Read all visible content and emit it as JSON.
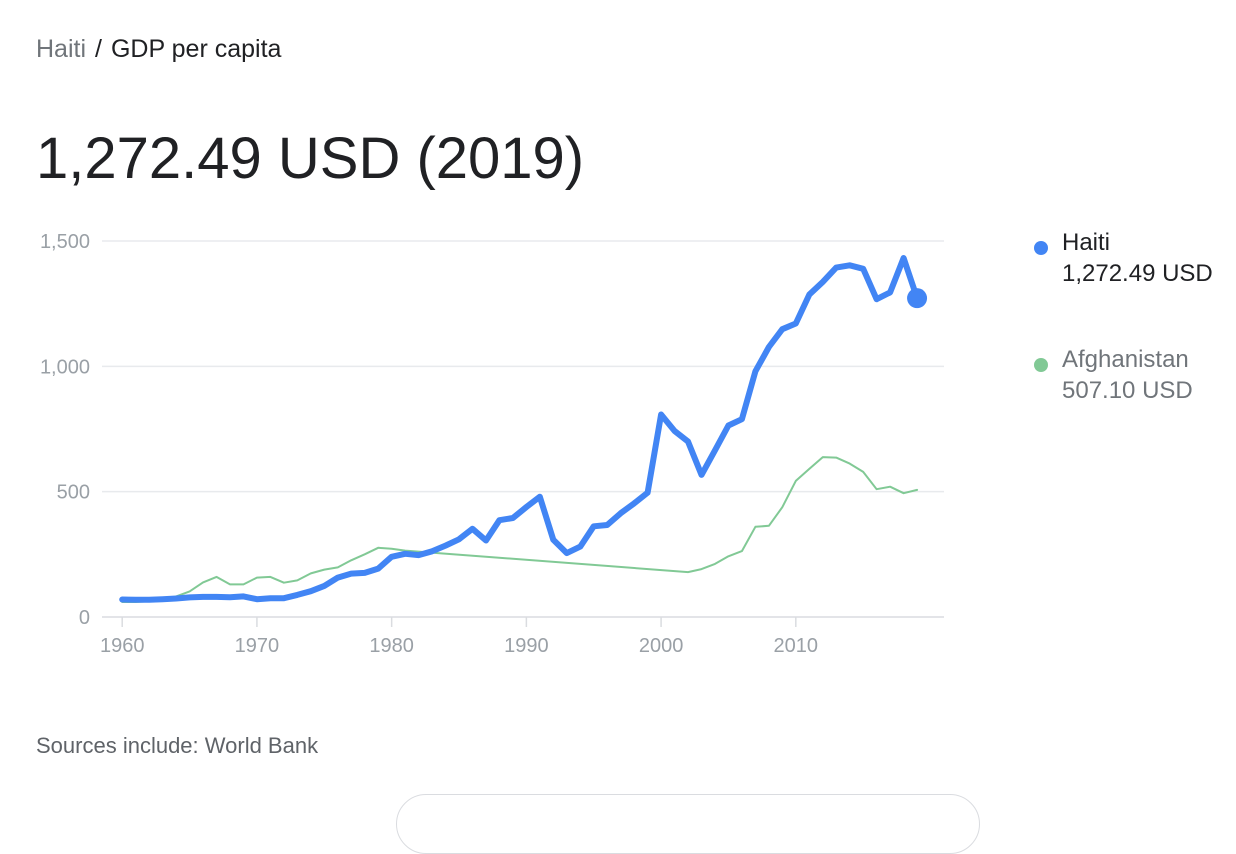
{
  "breadcrumb": {
    "parent": "Haiti",
    "separator": "/",
    "current": "GDP per capita"
  },
  "headline": "1,272.49 USD (2019)",
  "colors": {
    "haiti": "#4285f4",
    "afghanistan": "#81c995",
    "grid": "#e8eaed",
    "axis_text": "#9aa0a6"
  },
  "legend": [
    {
      "name": "Haiti",
      "value": "1,272.49 USD",
      "color": "#4285f4"
    },
    {
      "name": "Afghanistan",
      "value": "507.10 USD",
      "color": "#81c995"
    }
  ],
  "sources": "Sources include: World Bank",
  "chart_data": {
    "type": "line",
    "xlim": [
      1958.5,
      2021
    ],
    "ylim": [
      0,
      1500
    ],
    "x_ticks": [
      1960,
      1970,
      1980,
      1990,
      2000,
      2010
    ],
    "x_tick_labels": [
      "1960",
      "1970",
      "1980",
      "1990",
      "2000",
      "2010"
    ],
    "y_ticks": [
      0,
      500,
      1000,
      1500
    ],
    "y_tick_labels": [
      "0",
      "500",
      "1,000",
      "1,500"
    ],
    "grid": true,
    "legend_position": "right",
    "series": [
      {
        "name": "Haiti",
        "color": "#4285f4",
        "x": [
          1960,
          1961,
          1962,
          1963,
          1964,
          1965,
          1966,
          1967,
          1968,
          1969,
          1970,
          1971,
          1972,
          1973,
          1974,
          1975,
          1976,
          1977,
          1978,
          1979,
          1980,
          1981,
          1982,
          1983,
          1984,
          1985,
          1986,
          1987,
          1988,
          1989,
          1990,
          1991,
          1992,
          1993,
          1994,
          1995,
          1996,
          1997,
          1998,
          1999,
          2000,
          2001,
          2002,
          2003,
          2004,
          2005,
          2006,
          2007,
          2008,
          2009,
          2010,
          2011,
          2012,
          2013,
          2014,
          2015,
          2016,
          2017,
          2018,
          2019
        ],
        "y": [
          70,
          69,
          69,
          71,
          74,
          78,
          80,
          80,
          79,
          82,
          71,
          75,
          75,
          88,
          103,
          124,
          157,
          173,
          176,
          193,
          240,
          252,
          247,
          262,
          285,
          310,
          352,
          305,
          386,
          395,
          439,
          480,
          308,
          255,
          281,
          362,
          367,
          414,
          453,
          496,
          808,
          742,
          700,
          567,
          665,
          764,
          789,
          980,
          1077,
          1148,
          1171,
          1286,
          1337,
          1394,
          1403,
          1389,
          1268,
          1295,
          1432,
          1272
        ]
      },
      {
        "name": "Afghanistan",
        "color": "#81c995",
        "x": [
          1960,
          1961,
          1962,
          1963,
          1964,
          1965,
          1966,
          1967,
          1968,
          1969,
          1970,
          1971,
          1972,
          1973,
          1974,
          1975,
          1976,
          1977,
          1978,
          1979,
          1980,
          1981,
          2002,
          2003,
          2004,
          2005,
          2006,
          2007,
          2008,
          2009,
          2010,
          2011,
          2012,
          2013,
          2014,
          2015,
          2016,
          2017,
          2018,
          2019
        ],
        "y": [
          60,
          60,
          63,
          68,
          82,
          102,
          138,
          160,
          130,
          130,
          157,
          160,
          137,
          146,
          174,
          189,
          198,
          226,
          250,
          276,
          272,
          265,
          179,
          191,
          212,
          242,
          263,
          360,
          364,
          438,
          543,
          591,
          638,
          636,
          612,
          579,
          510,
          520,
          494,
          507
        ]
      }
    ]
  }
}
